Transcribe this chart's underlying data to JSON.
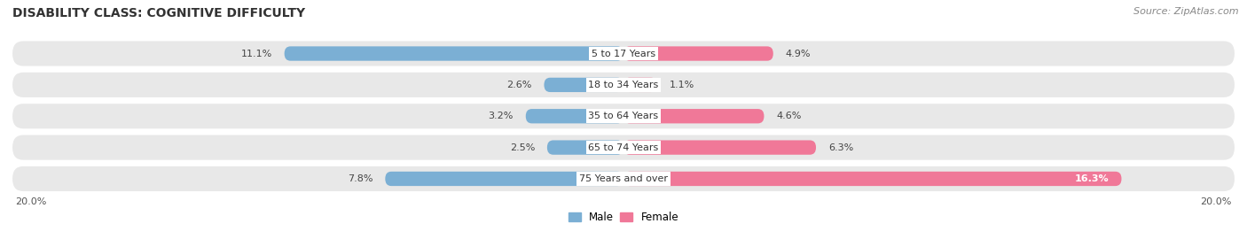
{
  "title": "DISABILITY CLASS: COGNITIVE DIFFICULTY",
  "source": "Source: ZipAtlas.com",
  "categories": [
    "5 to 17 Years",
    "18 to 34 Years",
    "35 to 64 Years",
    "65 to 74 Years",
    "75 Years and over"
  ],
  "male_values": [
    11.1,
    2.6,
    3.2,
    2.5,
    7.8
  ],
  "female_values": [
    4.9,
    1.1,
    4.6,
    6.3,
    16.3
  ],
  "male_color": "#7bafd4",
  "female_color": "#f07898",
  "male_label": "Male",
  "female_label": "Female",
  "x_max": 20.0,
  "background_color": "#ffffff",
  "row_bg_color": "#e8e8e8",
  "row_bg_color_alt": "#f0f0f0",
  "axis_label_left": "20.0%",
  "axis_label_right": "20.0%",
  "title_fontsize": 10,
  "source_fontsize": 8,
  "bar_label_fontsize": 8,
  "category_fontsize": 8
}
